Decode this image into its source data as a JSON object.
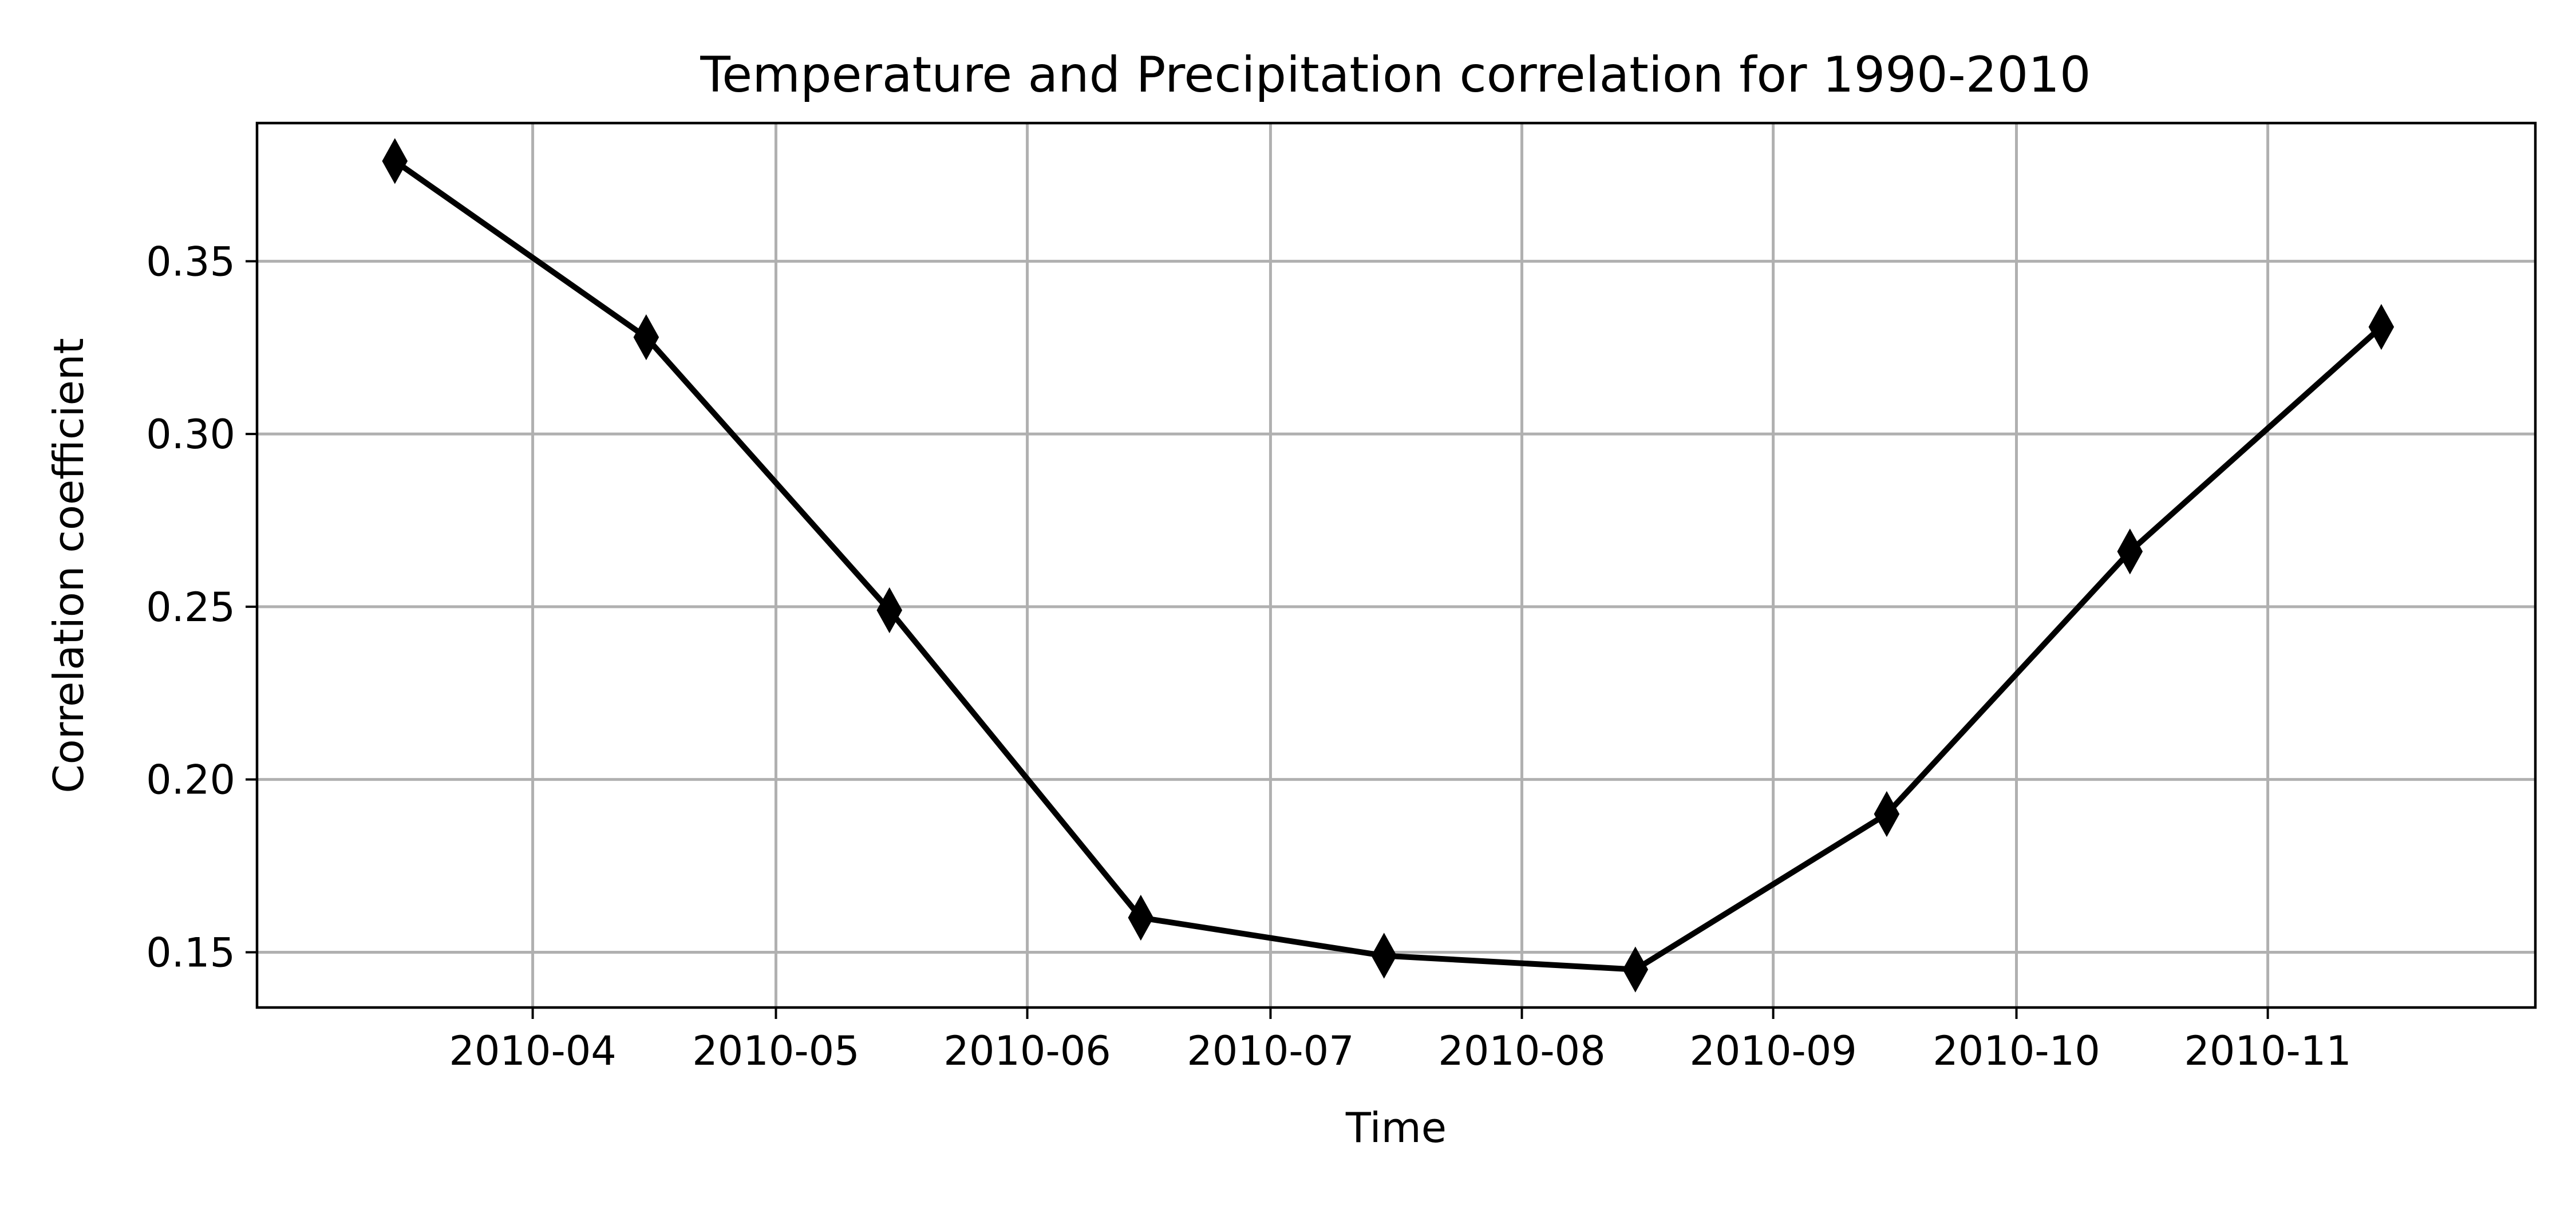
{
  "chart_data": {
    "type": "line",
    "title": "Temperature and Precipitation correlation for 1990-2010",
    "xlabel": "Time",
    "ylabel": "Correlation coefficient",
    "x": [
      "2010-03-15",
      "2010-04-15",
      "2010-05-15",
      "2010-06-15",
      "2010-07-15",
      "2010-08-15",
      "2010-09-15",
      "2010-10-15",
      "2010-11-15"
    ],
    "series": [
      {
        "values": [
          0.379,
          0.328,
          0.249,
          0.16,
          0.149,
          0.145,
          0.19,
          0.266,
          0.331
        ],
        "color": "#000000",
        "marker": "thin-diamond"
      }
    ],
    "xlim": [
      "2010-02-26",
      "2010-12-04"
    ],
    "ylim": [
      0.134,
      0.39
    ],
    "x_ticks": [
      "2010-04-01",
      "2010-05-01",
      "2010-06-01",
      "2010-07-01",
      "2010-08-01",
      "2010-09-01",
      "2010-10-01",
      "2010-11-01"
    ],
    "x_tick_labels": [
      "2010-04",
      "2010-05",
      "2010-06",
      "2010-07",
      "2010-08",
      "2010-09",
      "2010-10",
      "2010-11"
    ],
    "y_ticks": [
      0.15,
      0.2,
      0.25,
      0.3,
      0.35
    ],
    "y_tick_labels": [
      "0.15",
      "0.20",
      "0.25",
      "0.30",
      "0.35"
    ],
    "grid": true,
    "colors": {
      "line": "#000000",
      "grid": "#b0b0b0",
      "background": "#ffffff"
    }
  }
}
